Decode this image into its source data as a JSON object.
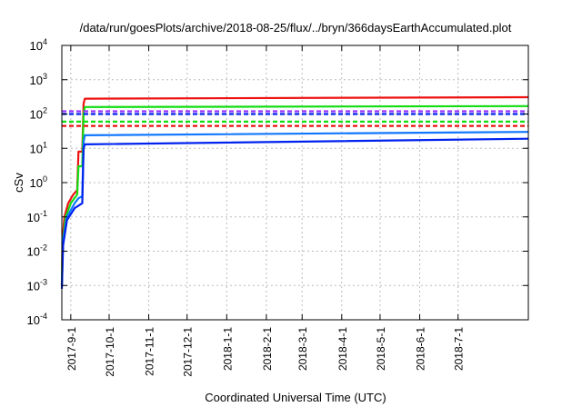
{
  "chart_data": {
    "type": "line",
    "title": "/data/run/goesPlots/archive/2018-08-25/flux/../bryn/366daysEarthAccumulated.plot",
    "xlabel": "Coordinated Universal Time (UTC)",
    "ylabel": "cSv",
    "x_units": "days since 2017-08-25",
    "xlim": [
      0,
      365
    ],
    "ylim": [
      0.0001,
      10000
    ],
    "yscale": "log",
    "grid": true,
    "x_ticks": [
      {
        "day": 7,
        "label": "2017-9-1"
      },
      {
        "day": 37,
        "label": "2017-10-1"
      },
      {
        "day": 68,
        "label": "2017-11-1"
      },
      {
        "day": 98,
        "label": "2017-12-1"
      },
      {
        "day": 129,
        "label": "2018-1-1"
      },
      {
        "day": 160,
        "label": "2018-2-1"
      },
      {
        "day": 188,
        "label": "2018-3-1"
      },
      {
        "day": 219,
        "label": "2018-4-1"
      },
      {
        "day": 249,
        "label": "2018-5-1"
      },
      {
        "day": 280,
        "label": "2018-6-1"
      },
      {
        "day": 310,
        "label": "2018-7-1"
      }
    ],
    "y_ticks": [
      {
        "value": 0.0001,
        "exp": "-4"
      },
      {
        "value": 0.001,
        "exp": "-3"
      },
      {
        "value": 0.01,
        "exp": "-2"
      },
      {
        "value": 0.1,
        "exp": "-1"
      },
      {
        "value": 1,
        "exp": "0"
      },
      {
        "value": 10,
        "exp": "1"
      },
      {
        "value": 100,
        "exp": "2"
      },
      {
        "value": 1000,
        "exp": "3"
      },
      {
        "value": 10000,
        "exp": "4"
      }
    ],
    "y_tick_base": "10",
    "series": [
      {
        "name": "red",
        "color": "#ee1111",
        "style": "solid",
        "points": [
          [
            0,
            0.001
          ],
          [
            0.5,
            0.02
          ],
          [
            2,
            0.1
          ],
          [
            5,
            0.25
          ],
          [
            9,
            0.45
          ],
          [
            12,
            0.6
          ],
          [
            13,
            8
          ],
          [
            16,
            8
          ],
          [
            17,
            200
          ],
          [
            18,
            280
          ],
          [
            365,
            310
          ]
        ]
      },
      {
        "name": "green",
        "color": "#11dd11",
        "style": "solid",
        "points": [
          [
            0,
            0.001
          ],
          [
            0.5,
            0.015
          ],
          [
            3,
            0.1
          ],
          [
            7,
            0.25
          ],
          [
            12,
            0.45
          ],
          [
            13,
            3
          ],
          [
            16,
            3
          ],
          [
            17,
            100
          ],
          [
            18,
            160
          ],
          [
            365,
            170
          ]
        ]
      },
      {
        "name": "light-blue",
        "color": "#1177ff",
        "style": "solid",
        "points": [
          [
            0,
            0.001
          ],
          [
            1,
            0.02
          ],
          [
            4,
            0.1
          ],
          [
            10,
            0.25
          ],
          [
            13,
            0.35
          ],
          [
            16,
            0.4
          ],
          [
            17,
            15
          ],
          [
            18,
            24
          ],
          [
            365,
            30
          ]
        ]
      },
      {
        "name": "blue",
        "color": "#0022ee",
        "style": "solid",
        "points": [
          [
            0,
            0.0008
          ],
          [
            1,
            0.015
          ],
          [
            4,
            0.08
          ],
          [
            10,
            0.18
          ],
          [
            16,
            0.25
          ],
          [
            17,
            10
          ],
          [
            18,
            13
          ],
          [
            365,
            19
          ]
        ]
      },
      {
        "name": "purple-threshold",
        "color": "#9933ff",
        "style": "dashed",
        "points": [
          [
            0,
            120
          ],
          [
            365,
            120
          ]
        ]
      },
      {
        "name": "blue-threshold",
        "color": "#0022ee",
        "style": "dashed",
        "points": [
          [
            0,
            100
          ],
          [
            365,
            100
          ]
        ]
      },
      {
        "name": "green-threshold",
        "color": "#11dd11",
        "style": "dashed",
        "points": [
          [
            0,
            60
          ],
          [
            365,
            60
          ]
        ]
      },
      {
        "name": "red-threshold",
        "color": "#ee1111",
        "style": "dashed",
        "points": [
          [
            0,
            45
          ],
          [
            365,
            45
          ]
        ]
      }
    ]
  }
}
